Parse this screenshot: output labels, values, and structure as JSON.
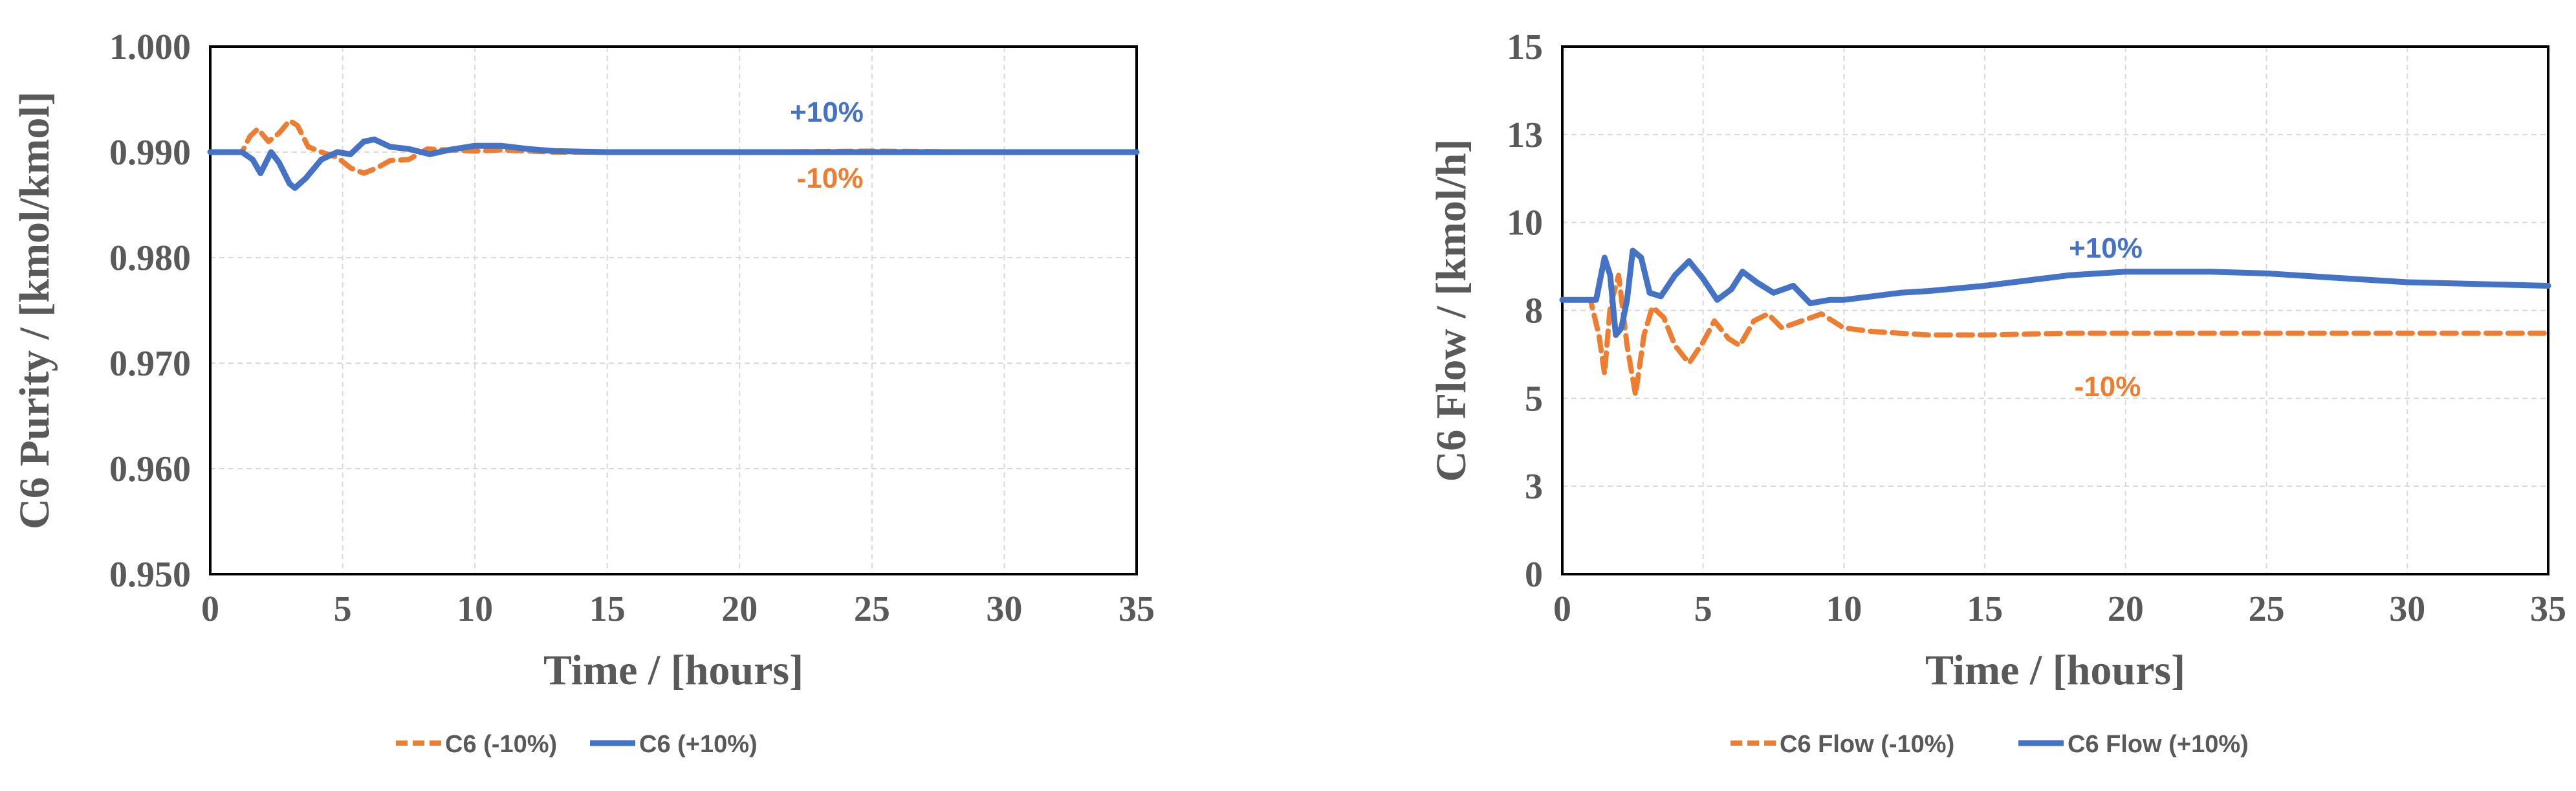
{
  "colors": {
    "minus": "#ED7D31",
    "plus": "#4472C4"
  },
  "chart_data": [
    {
      "type": "line",
      "xlabel": "Time / [hours]",
      "ylabel": "C6 Purity / [kmol/kmol]",
      "xlim": [
        0,
        35
      ],
      "ylim": [
        0.95,
        1.0
      ],
      "xticks": [
        "0",
        "5",
        "10",
        "15",
        "20",
        "25",
        "30",
        "35"
      ],
      "yticks": [
        "0.950",
        "0.960",
        "0.970",
        "0.980",
        "0.990",
        "1.000"
      ],
      "grid": true,
      "legend_position": "bottom",
      "annotations": {
        "plus": "+10%",
        "minus": "-10%"
      },
      "series": [
        {
          "name": "C6 (-10%)",
          "style": "dashed",
          "x": [
            0,
            1.2,
            1.5,
            1.8,
            2.2,
            2.6,
            3.0,
            3.3,
            3.7,
            4.2,
            4.8,
            5.3,
            5.8,
            6.3,
            6.8,
            7.5,
            8.2,
            9,
            10,
            11,
            12,
            13,
            15,
            20,
            25,
            30,
            35
          ],
          "y": [
            0.99,
            0.99,
            0.9915,
            0.9922,
            0.991,
            0.9918,
            0.993,
            0.9925,
            0.9905,
            0.99,
            0.9895,
            0.9885,
            0.988,
            0.9885,
            0.9892,
            0.9893,
            0.9903,
            0.9902,
            0.9901,
            0.9902,
            0.9901,
            0.99,
            0.99,
            0.99,
            0.9901,
            0.99,
            0.99
          ]
        },
        {
          "name": "C6 (+10%)",
          "style": "solid",
          "x": [
            0,
            1.2,
            1.6,
            1.9,
            2.3,
            2.6,
            3.0,
            3.2,
            3.6,
            4.2,
            4.8,
            5.3,
            5.8,
            6.2,
            6.8,
            7.5,
            8.3,
            9.0,
            10.0,
            11.0,
            12.0,
            13.0,
            15,
            20,
            25,
            30,
            35
          ],
          "y": [
            0.99,
            0.99,
            0.9893,
            0.988,
            0.99,
            0.989,
            0.987,
            0.9866,
            0.9875,
            0.9893,
            0.99,
            0.9898,
            0.991,
            0.9912,
            0.9905,
            0.9903,
            0.9898,
            0.9902,
            0.9906,
            0.9906,
            0.9903,
            0.9901,
            0.99,
            0.99,
            0.99,
            0.99,
            0.99
          ]
        }
      ]
    },
    {
      "type": "line",
      "xlabel": "Time / [hours]",
      "ylabel": "C6 Flow / [kmol/h]",
      "xlim": [
        0,
        35
      ],
      "ylim": [
        0,
        15
      ],
      "xticks": [
        "0",
        "5",
        "10",
        "15",
        "20",
        "25",
        "30",
        "35"
      ],
      "yticks": [
        "0",
        "3",
        "5",
        "8",
        "10",
        "13",
        "15"
      ],
      "ytick_values": [
        0,
        2.5,
        5,
        7.5,
        10,
        12.5,
        15
      ],
      "grid": true,
      "legend_position": "bottom",
      "annotations": {
        "plus": "+10%",
        "minus": "-10%"
      },
      "series": [
        {
          "name": "C6 Flow (-10%)",
          "style": "dashed",
          "x": [
            0,
            1.0,
            1.3,
            1.5,
            1.7,
            2.0,
            2.3,
            2.6,
            2.9,
            3.2,
            3.6,
            4.0,
            4.5,
            5.0,
            5.4,
            5.9,
            6.3,
            6.8,
            7.3,
            7.8,
            8.5,
            9.2,
            10,
            11,
            13,
            15,
            18,
            20,
            25,
            30,
            35
          ],
          "y": [
            7.8,
            7.8,
            6.8,
            5.7,
            7.6,
            8.5,
            6.5,
            5.1,
            6.8,
            7.6,
            7.3,
            6.5,
            6.0,
            6.6,
            7.2,
            6.7,
            6.5,
            7.2,
            7.4,
            7.0,
            7.2,
            7.4,
            7.0,
            6.9,
            6.8,
            6.8,
            6.85,
            6.85,
            6.85,
            6.85,
            6.85
          ]
        },
        {
          "name": "C6 Flow (+10%)",
          "style": "solid",
          "x": [
            0,
            1.2,
            1.5,
            1.7,
            1.9,
            2.1,
            2.3,
            2.5,
            2.8,
            3.1,
            3.5,
            4.0,
            4.5,
            5.0,
            5.5,
            6.0,
            6.4,
            6.9,
            7.5,
            8.2,
            8.8,
            9.5,
            10,
            11,
            12,
            13,
            15,
            18,
            20,
            23,
            25,
            28,
            30,
            35
          ],
          "y": [
            7.8,
            7.8,
            9.0,
            8.5,
            6.8,
            7.0,
            7.8,
            9.2,
            9.0,
            8.0,
            7.9,
            8.5,
            8.9,
            8.4,
            7.8,
            8.1,
            8.6,
            8.3,
            8.0,
            8.2,
            7.7,
            7.8,
            7.8,
            7.9,
            8.0,
            8.05,
            8.2,
            8.5,
            8.6,
            8.6,
            8.55,
            8.4,
            8.3,
            8.2
          ]
        }
      ]
    }
  ]
}
